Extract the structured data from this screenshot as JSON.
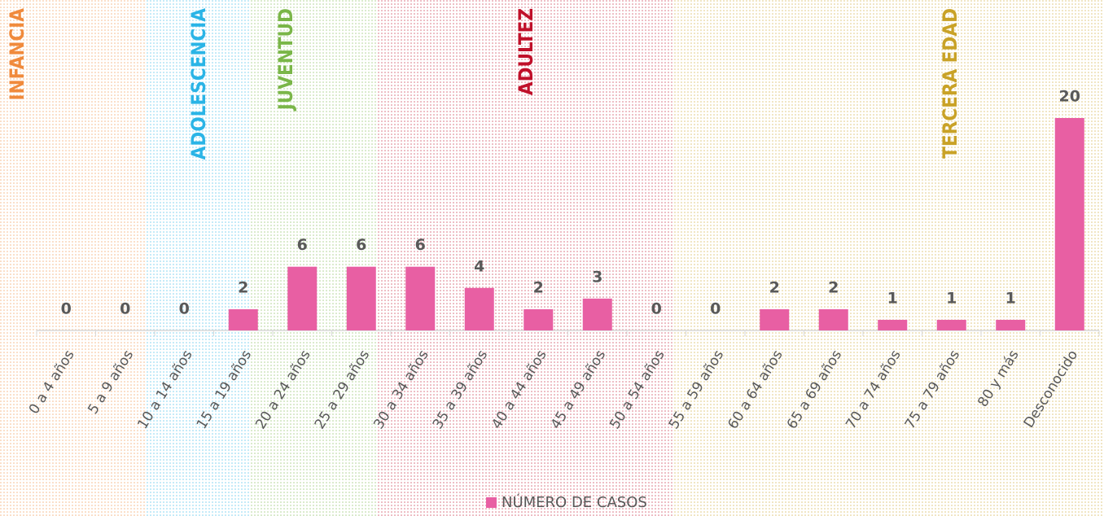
{
  "chart_data": {
    "type": "bar",
    "categories": [
      "0 a 4 años",
      "5 a 9 años",
      "10 a 14 años",
      "15 a 19 años",
      "20 a 24 años",
      "25 a 29 años",
      "30 a 34 años",
      "35 a 39 años",
      "40 a 44 años",
      "45 a 49 años",
      "50 a 54 años",
      "55 a 59 años",
      "60 a 64 años",
      "65 a 69 años",
      "70 a 74 años",
      "75 a 79 años",
      "80 y más",
      "Desconocido"
    ],
    "series": [
      {
        "name": "NÚMERO DE CASOS",
        "color": "#e85fa3",
        "values": [
          0,
          0,
          0,
          2,
          6,
          6,
          6,
          4,
          2,
          3,
          0,
          0,
          2,
          2,
          1,
          1,
          1,
          20
        ]
      }
    ],
    "legend": "bottom",
    "annotations": [
      {
        "label": "INFANCIA",
        "color": "#f08a3c"
      },
      {
        "label": "ADOLESCENCIA",
        "color": "#2ab4e6"
      },
      {
        "label": "JUVENTUD",
        "color": "#7ab648"
      },
      {
        "label": "ADULTEZ",
        "color": "#c0102a"
      },
      {
        "label": "TERCERA EDAD",
        "color": "#c9a227"
      }
    ]
  }
}
